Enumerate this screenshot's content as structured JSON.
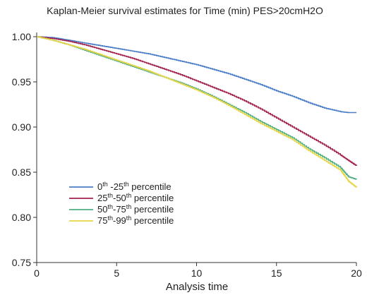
{
  "chart_data": {
    "type": "line",
    "title": "Kaplan-Meier survival estimates for Time (min) PES>20cmH2O",
    "xlabel": "Analysis time",
    "ylabel": "",
    "xlim": [
      0,
      20
    ],
    "ylim": [
      0.75,
      1.0
    ],
    "x_ticks": [
      0,
      5,
      10,
      15,
      20
    ],
    "x_tick_labels": [
      "0",
      "5",
      "10",
      "15",
      "20"
    ],
    "y_ticks": [
      0.75,
      0.8,
      0.85,
      0.9,
      0.95,
      1.0
    ],
    "y_tick_labels": [
      "0.75",
      "0.80",
      "0.85",
      "0.90",
      "0.95",
      "1.00"
    ],
    "grid": false,
    "legend_position": "bottom-left",
    "series": [
      {
        "name": "0th -25th percentile",
        "legend": [
          {
            "text": "0",
            "sup": false
          },
          {
            "text": "th",
            "sup": true
          },
          {
            "text": " -25",
            "sup": false
          },
          {
            "text": "th",
            "sup": true
          },
          {
            "text": " percentile",
            "sup": false
          }
        ],
        "color": "#4a7ec6",
        "x": [
          0,
          1,
          2,
          3,
          4,
          5,
          6,
          7,
          8,
          9,
          10,
          11,
          12,
          13,
          14,
          15,
          16,
          17,
          18,
          19,
          19.5,
          20
        ],
        "values": [
          1.0,
          0.999,
          0.996,
          0.993,
          0.99,
          0.987,
          0.984,
          0.981,
          0.977,
          0.973,
          0.969,
          0.964,
          0.959,
          0.953,
          0.947,
          0.94,
          0.934,
          0.927,
          0.921,
          0.917,
          0.916,
          0.916
        ]
      },
      {
        "name": "25th-50th percentile",
        "legend": [
          {
            "text": "25",
            "sup": false
          },
          {
            "text": "th",
            "sup": true
          },
          {
            "text": "-50",
            "sup": false
          },
          {
            "text": "th",
            "sup": true
          },
          {
            "text": " percentile",
            "sup": false
          }
        ],
        "color": "#a3234f",
        "x": [
          0,
          1,
          2,
          3,
          4,
          5,
          6,
          7,
          8,
          9,
          10,
          11,
          12,
          13,
          14,
          15,
          16,
          17,
          18,
          19,
          19.5,
          20
        ],
        "values": [
          1.0,
          0.998,
          0.995,
          0.991,
          0.986,
          0.981,
          0.976,
          0.97,
          0.964,
          0.958,
          0.951,
          0.944,
          0.937,
          0.929,
          0.92,
          0.91,
          0.9,
          0.89,
          0.88,
          0.869,
          0.863,
          0.857
        ]
      },
      {
        "name": "50th-75th percentile",
        "legend": [
          {
            "text": "50",
            "sup": false
          },
          {
            "text": "th",
            "sup": true
          },
          {
            "text": "-75",
            "sup": false
          },
          {
            "text": "th",
            "sup": true
          },
          {
            "text": " percentile",
            "sup": false
          }
        ],
        "color": "#4fae84",
        "x": [
          0,
          1,
          2,
          3,
          4,
          5,
          6,
          7,
          8,
          9,
          10,
          11,
          12,
          13,
          14,
          15,
          16,
          17,
          18,
          19,
          19.5,
          20
        ],
        "values": [
          1.0,
          0.996,
          0.991,
          0.985,
          0.979,
          0.973,
          0.967,
          0.961,
          0.955,
          0.949,
          0.942,
          0.934,
          0.925,
          0.916,
          0.906,
          0.897,
          0.888,
          0.876,
          0.866,
          0.855,
          0.845,
          0.842
        ]
      },
      {
        "name": "75th-99th percentile",
        "legend": [
          {
            "text": "75",
            "sup": false
          },
          {
            "text": "th",
            "sup": true
          },
          {
            "text": "-99",
            "sup": false
          },
          {
            "text": "th",
            "sup": true
          },
          {
            "text": " percentile",
            "sup": false
          }
        ],
        "color": "#e4d546",
        "x": [
          0,
          1,
          2,
          3,
          4,
          5,
          6,
          7,
          8,
          9,
          10,
          11,
          12,
          13,
          14,
          15,
          16,
          17,
          18,
          19,
          19.5,
          20
        ],
        "values": [
          1.0,
          0.996,
          0.991,
          0.986,
          0.98,
          0.974,
          0.968,
          0.962,
          0.955,
          0.948,
          0.941,
          0.933,
          0.924,
          0.914,
          0.904,
          0.895,
          0.886,
          0.874,
          0.863,
          0.852,
          0.84,
          0.833
        ]
      }
    ]
  }
}
